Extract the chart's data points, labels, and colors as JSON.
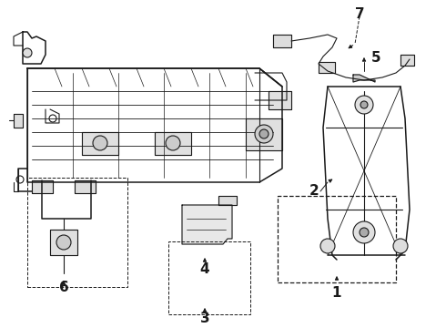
{
  "bg_color": "#ffffff",
  "line_color": "#1a1a1a",
  "fig_width": 4.9,
  "fig_height": 3.6,
  "dpi": 100,
  "label_fontsize": 10
}
